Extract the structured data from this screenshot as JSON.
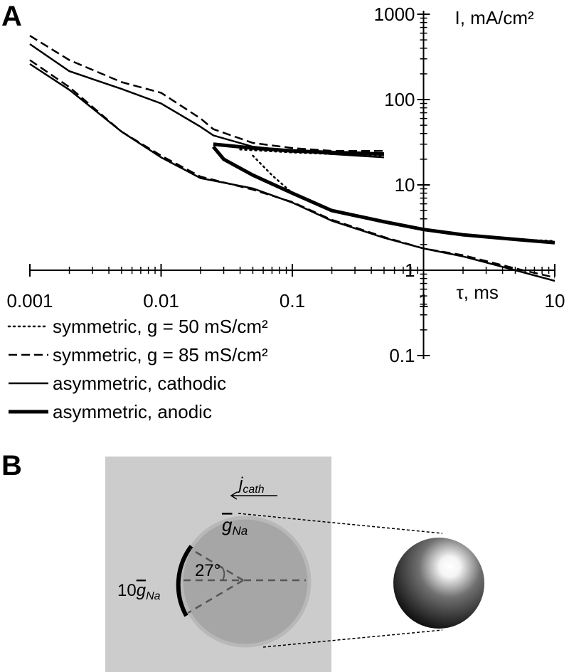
{
  "chart_data": {
    "type": "line",
    "panel_label": "A",
    "xlabel": "τ, ms",
    "ylabel": "I, mA/cm²",
    "xscale": "log",
    "yscale": "log",
    "minor_ticks": true,
    "xlim": [
      0.001,
      10
    ],
    "ylim": [
      0.1,
      1000
    ],
    "xticks": [
      0.001,
      0.01,
      0.1,
      1,
      10
    ],
    "yticks": [
      0.1,
      1,
      10,
      100,
      1000
    ],
    "axes_cross": [
      1,
      1
    ],
    "series": [
      {
        "name": "symmetric, g = 50 mS/cm²",
        "color": "#000000",
        "style": "dotted",
        "width": 2.5,
        "branches": [
          {
            "x": [
              0.04,
              0.1,
              0.2,
              0.5
            ],
            "values": [
              26,
              24,
              23,
              22
            ]
          },
          {
            "x": [
              0.05,
              0.07,
              0.1,
              0.2,
              0.5,
              1,
              2,
              5,
              10
            ],
            "values": [
              22,
              13,
              8,
              5,
              3.6,
              3,
              2.6,
              2.3,
              2.2
            ]
          }
        ]
      },
      {
        "name": "symmetric, g = 85 mS/cm²",
        "color": "#000000",
        "style": "dashed",
        "width": 2.5,
        "branches": [
          {
            "x": [
              0.001,
              0.002,
              0.005,
              0.01,
              0.02,
              0.025,
              0.05,
              0.1,
              0.2,
              0.5
            ],
            "values": [
              560,
              290,
              160,
              120,
              60,
              45,
              31,
              27,
              25,
              25
            ]
          },
          {
            "x": [
              0.001,
              0.002,
              0.005,
              0.01,
              0.02,
              0.05,
              0.1,
              0.2,
              0.5,
              1,
              2,
              5,
              10
            ],
            "values": [
              290,
              140,
              42,
              22,
              12.5,
              8.8,
              6.3,
              3.9,
              2.45,
              1.8,
              1.5,
              1.05,
              0.82
            ]
          }
        ]
      },
      {
        "name": "asymmetric, cathodic",
        "color": "#000000",
        "style": "solid",
        "width": 2.5,
        "branches": [
          {
            "x": [
              0.001,
              0.002,
              0.005,
              0.01,
              0.02,
              0.025,
              0.05,
              0.1,
              0.2,
              0.5
            ],
            "values": [
              447,
              215,
              133,
              90,
              48,
              38,
              28,
              25,
              23,
              21
            ]
          },
          {
            "x": [
              0.001,
              0.002,
              0.005,
              0.01,
              0.02,
              0.05,
              0.1,
              0.2,
              0.5,
              1,
              2,
              5,
              10
            ],
            "values": [
              261,
              130,
              42,
              21,
              12,
              9.1,
              6.2,
              3.8,
              2.4,
              1.8,
              1.45,
              1,
              0.75
            ]
          }
        ]
      },
      {
        "name": "asymmetric, anodic",
        "color": "#000000",
        "style": "solid",
        "width": 5,
        "branches": [
          {
            "x": [
              0.025,
              0.05,
              0.1,
              0.2,
              0.5
            ],
            "values": [
              30,
              27,
              25,
              24,
              23
            ]
          },
          {
            "x": [
              0.025,
              0.03,
              0.05,
              0.1,
              0.2,
              0.5,
              1,
              2,
              5,
              10
            ],
            "values": [
              28,
              20,
              13,
              8,
              5,
              3.7,
              3,
              2.6,
              2.3,
              2.1
            ]
          }
        ]
      }
    ]
  },
  "panel_b": {
    "label": "B",
    "current": "j",
    "current_sub": "cath",
    "conductance": "g",
    "conductance_sub": "Na",
    "high_prefix": "10",
    "angle": "27°"
  }
}
